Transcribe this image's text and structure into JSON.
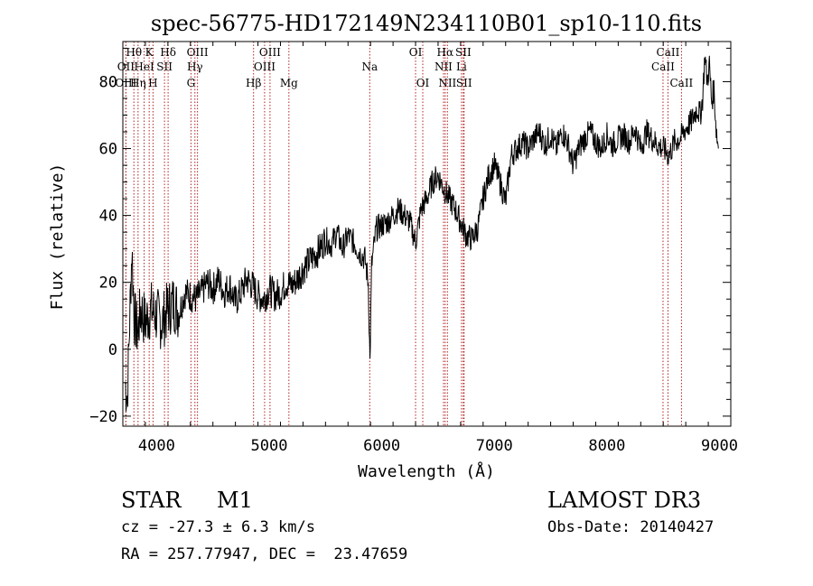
{
  "chart_data": {
    "type": "line",
    "title": "spec-56775-HD172149N234110B01_sp10-110.fits",
    "xlabel": "Wavelength (Å)",
    "ylabel": "Flux (relative)",
    "xlim": [
      3700,
      9100
    ],
    "ylim": [
      -23,
      92
    ],
    "xticks": [
      4000,
      5000,
      6000,
      7000,
      8000,
      9000
    ],
    "yticks": [
      -20,
      0,
      20,
      40,
      60,
      80
    ],
    "line_color": "#000000",
    "marker_color": "#b22222",
    "spectrum": {
      "name": "Flux",
      "x": [
        3720,
        3740,
        3760,
        3780,
        3800,
        3830,
        3860,
        3900,
        3950,
        4000,
        4050,
        4100,
        4150,
        4200,
        4250,
        4300,
        4350,
        4400,
        4450,
        4500,
        4550,
        4600,
        4650,
        4700,
        4750,
        4800,
        4850,
        4900,
        4950,
        5000,
        5050,
        5100,
        5150,
        5200,
        5250,
        5300,
        5350,
        5400,
        5450,
        5500,
        5550,
        5600,
        5650,
        5700,
        5750,
        5800,
        5850,
        5880,
        5895,
        5910,
        5950,
        6000,
        6050,
        6100,
        6150,
        6200,
        6250,
        6300,
        6350,
        6400,
        6450,
        6500,
        6550,
        6600,
        6650,
        6700,
        6750,
        6800,
        6850,
        6900,
        6950,
        7000,
        7050,
        7100,
        7150,
        7200,
        7250,
        7300,
        7350,
        7400,
        7450,
        7500,
        7550,
        7600,
        7650,
        7700,
        7750,
        7800,
        7850,
        7900,
        7950,
        8000,
        8050,
        8100,
        8150,
        8200,
        8250,
        8300,
        8350,
        8400,
        8450,
        8500,
        8550,
        8600,
        8650,
        8700,
        8750,
        8800,
        8830,
        8850,
        8870,
        8890,
        8910,
        8930,
        8950,
        8970,
        8990
      ],
      "y": [
        -10,
        -14,
        8,
        30,
        10,
        5,
        12,
        8,
        12,
        10,
        8,
        12,
        14,
        11,
        17,
        16,
        15,
        17,
        20,
        18,
        21,
        17,
        19,
        14,
        17,
        21,
        19,
        16,
        15,
        18,
        16,
        17,
        20,
        19,
        21,
        24,
        26,
        28,
        30,
        33,
        31,
        35,
        30,
        34,
        32,
        29,
        27,
        20,
        -4,
        25,
        36,
        37,
        38,
        40,
        42,
        40,
        38,
        32,
        42,
        45,
        50,
        52,
        48,
        45,
        42,
        38,
        34,
        33,
        36,
        45,
        52,
        55,
        50,
        44,
        58,
        60,
        62,
        60,
        63,
        65,
        61,
        64,
        60,
        65,
        62,
        55,
        60,
        63,
        65,
        62,
        60,
        64,
        61,
        63,
        64,
        62,
        66,
        60,
        65,
        63,
        61,
        60,
        58,
        62,
        63,
        66,
        68,
        72,
        70,
        75,
        88,
        80,
        85,
        74,
        78,
        66,
        60
      ]
    },
    "line_markers": [
      {
        "label": "Hθ",
        "wavelength": 3798,
        "row": 0
      },
      {
        "label": "OII",
        "wavelength": 3727,
        "row": 1
      },
      {
        "label": "OIII",
        "wavelength": 3727,
        "row": 2
      },
      {
        "label": "K",
        "wavelength": 3934,
        "row": 0
      },
      {
        "label": "HeI",
        "wavelength": 3889,
        "row": 1
      },
      {
        "label": "Hη",
        "wavelength": 3835,
        "row": 2
      },
      {
        "label": "H",
        "wavelength": 3968,
        "row": 2
      },
      {
        "label": "Hδ",
        "wavelength": 4102,
        "row": 0
      },
      {
        "label": "SII",
        "wavelength": 4070,
        "row": 1
      },
      {
        "label": "OIII",
        "wavelength": 4363,
        "row": 0
      },
      {
        "label": "Hγ",
        "wavelength": 4340,
        "row": 1
      },
      {
        "label": "G",
        "wavelength": 4305,
        "row": 2
      },
      {
        "label": "OIII",
        "wavelength": 5007,
        "row": 0
      },
      {
        "label": "OIII",
        "wavelength": 4959,
        "row": 1
      },
      {
        "label": "Hβ",
        "wavelength": 4861,
        "row": 2
      },
      {
        "label": "Mg",
        "wavelength": 5175,
        "row": 2
      },
      {
        "label": "Na",
        "wavelength": 5893,
        "row": 1
      },
      {
        "label": "OI",
        "wavelength": 6300,
        "row": 0
      },
      {
        "label": "OI",
        "wavelength": 6364,
        "row": 2
      },
      {
        "label": "Hα",
        "wavelength": 6563,
        "row": 0
      },
      {
        "label": "SII",
        "wavelength": 6724,
        "row": 0
      },
      {
        "label": "NII",
        "wavelength": 6548,
        "row": 1
      },
      {
        "label": "Li",
        "wavelength": 6708,
        "row": 1
      },
      {
        "label": "NII",
        "wavelength": 6583,
        "row": 2
      },
      {
        "label": "SII",
        "wavelength": 6731,
        "row": 2
      },
      {
        "label": "CaII",
        "wavelength": 8542,
        "row": 0
      },
      {
        "label": "CaII",
        "wavelength": 8498,
        "row": 1
      },
      {
        "label": "CaII",
        "wavelength": 8662,
        "row": 2
      }
    ]
  },
  "info": {
    "object_class": "STAR",
    "subclass": "M1",
    "survey": "LAMOST DR3",
    "redshift": "cz = -27.3 ± 6.3 km/s",
    "obs_date": "Obs-Date: 20140427",
    "coords": "RA = 257.77947, DEC =  23.47659"
  }
}
